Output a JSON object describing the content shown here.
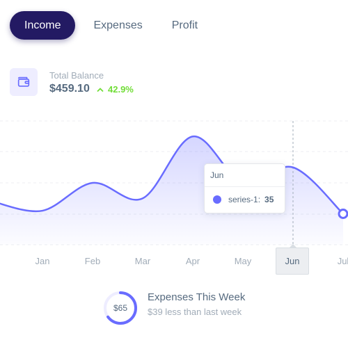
{
  "tabs": [
    {
      "label": "Income",
      "active": true
    },
    {
      "label": "Expenses",
      "active": false
    },
    {
      "label": "Profit",
      "active": false
    }
  ],
  "balance": {
    "icon": "wallet-icon",
    "label": "Total Balance",
    "value": "$459.10",
    "change": "42.9%",
    "change_icon": "chevron-up-icon",
    "change_color": "#71dd37"
  },
  "chart_data": {
    "type": "area",
    "categories": [
      "Jan",
      "Feb",
      "Mar",
      "Apr",
      "May",
      "Jun",
      "Jul"
    ],
    "series": [
      {
        "name": "series-1",
        "values": [
          21,
          30,
          25,
          45,
          30,
          35,
          20
        ]
      }
    ],
    "leading_value": 24,
    "ylim": [
      10,
      50
    ],
    "grid": true,
    "color": "#696cff",
    "tooltip": {
      "category": "Jun",
      "series": "series-1",
      "value": "35"
    },
    "crosshair_label": "Jun"
  },
  "week": {
    "ring_value": "$65",
    "ring_progress": 0.65,
    "title": "Expenses This Week",
    "subtitle": "$39 less than last week"
  }
}
